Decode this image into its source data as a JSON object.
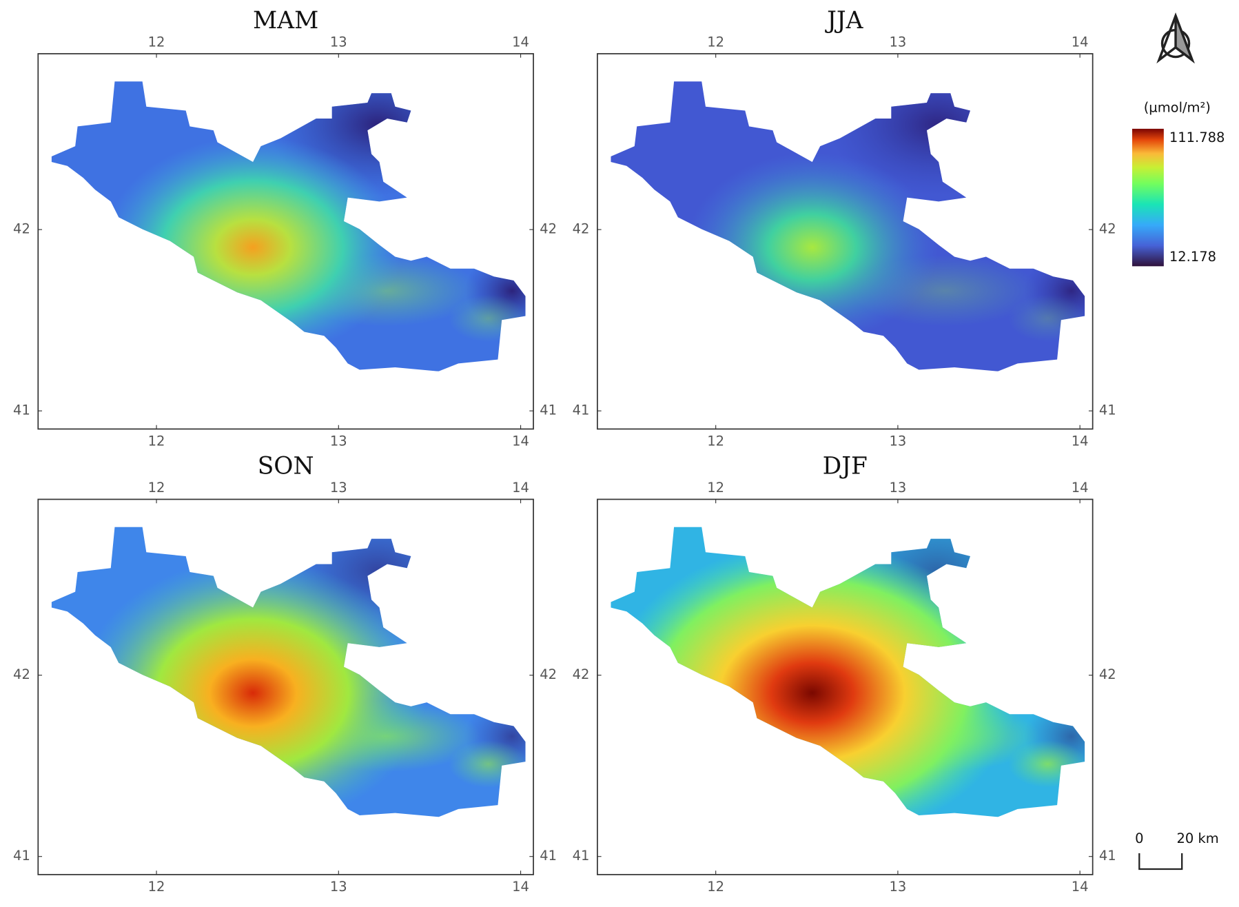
{
  "panels": [
    {
      "title": "MAM"
    },
    {
      "title": "JJA"
    },
    {
      "title": "SON"
    },
    {
      "title": "DJF"
    }
  ],
  "axes": {
    "xlim": [
      11.35,
      14.07
    ],
    "ylim": [
      40.9,
      42.97
    ],
    "xticks": [
      12,
      13,
      14
    ],
    "yticks": [
      41,
      42
    ]
  },
  "legend": {
    "unit": "(µmol/m²)",
    "max": 111.788,
    "min": 12.178
  },
  "scale_bar": {
    "labels": [
      "0",
      "20 km"
    ]
  }
}
